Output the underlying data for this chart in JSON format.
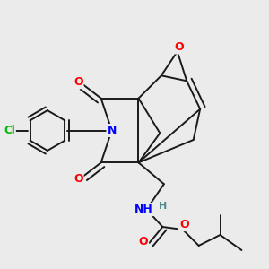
{
  "background_color": "#ebebeb",
  "bond_color": "#1a1a1a",
  "atom_colors": {
    "O": "#ff0000",
    "N": "#0000ff",
    "Cl": "#00bb00",
    "H": "#558888",
    "C": "#1a1a1a"
  },
  "figsize": [
    3.0,
    3.0
  ],
  "dpi": 100
}
